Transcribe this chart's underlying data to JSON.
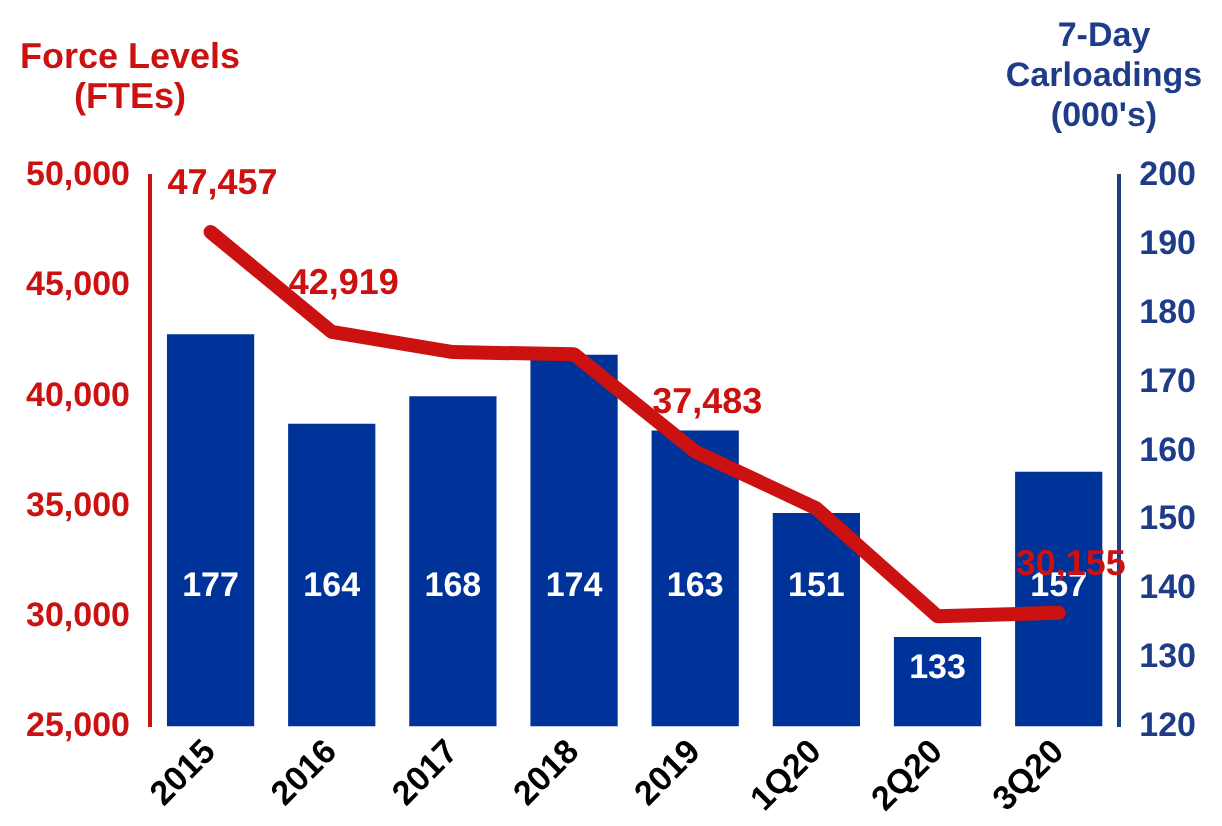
{
  "chart_data": {
    "type": "bar",
    "ylabel": "Force Levels (FTEs)",
    "y2label": "7-Day Carloadings (000's)",
    "categories": [
      "2015",
      "2016",
      "2017",
      "2018",
      "2019",
      "1Q20",
      "2Q20",
      "3Q20"
    ],
    "series": [
      {
        "axis": "y2",
        "color": "#003399",
        "values": [
          177,
          164,
          168,
          174,
          163,
          151,
          133,
          157
        ],
        "data_labels": true
      },
      {
        "type": "line",
        "axis": "y",
        "color": "#cc1111",
        "values": [
          47457,
          42919,
          42000,
          41900,
          37483,
          34900,
          30000,
          30155
        ],
        "value_labels": [
          "47,457",
          "42,919",
          null,
          null,
          "37,483",
          null,
          null,
          "30,155"
        ],
        "marker": "none"
      }
    ],
    "ylim": [
      25000,
      50000
    ],
    "yticks": [
      {
        "value": 25000,
        "label": "25,000"
      },
      {
        "value": 30000,
        "label": "30,000"
      },
      {
        "value": 35000,
        "label": "35,000"
      },
      {
        "value": 40000,
        "label": "40,000"
      },
      {
        "value": 45000,
        "label": "45,000"
      },
      {
        "value": 50000,
        "label": "50,000"
      }
    ],
    "y2lim": [
      120,
      200
    ],
    "y2ticks": [
      120,
      130,
      140,
      150,
      160,
      170,
      180,
      190,
      200
    ],
    "grid": false,
    "legend": false
  }
}
